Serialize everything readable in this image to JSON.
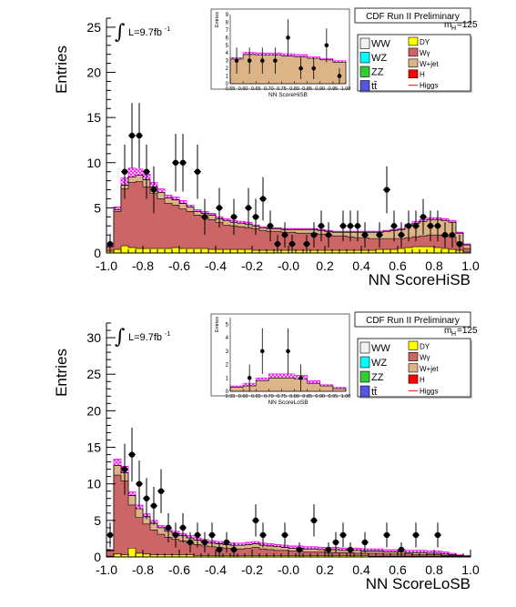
{
  "panels": [
    {
      "id": "hisb",
      "header": "CDF Run II Preliminary",
      "mass_label": "m",
      "mass_sub": "H",
      "mass_value": "=125",
      "lumi_text": "L=9.7fb",
      "lumi_sup": "-1",
      "inset": {
        "ylabel": "Entries",
        "xlabel": "NN ScoreHiSB",
        "xlim": [
          0.55,
          1.0
        ],
        "ylim": [
          0,
          9
        ],
        "yticks": [
          0,
          1,
          2,
          3,
          4,
          5,
          6,
          7,
          8,
          9
        ],
        "xticks": [
          "0.55",
          "0.60",
          "0.65",
          "0.70",
          "0.75",
          "0.80",
          "0.85",
          "0.90",
          "0.95",
          "1.00"
        ]
      },
      "legend": {
        "left": [
          {
            "label": "WW",
            "color": "#f2f2f2"
          },
          {
            "label": "WZ",
            "color": "#00ffff"
          },
          {
            "label": "ZZ",
            "color": "#33cc33"
          },
          {
            "label": "tt̄",
            "color": "#5555dd"
          }
        ],
        "right": [
          {
            "label": "DY",
            "color": "#ffff00"
          },
          {
            "label": "Wγ",
            "color": "#cc6666"
          },
          {
            "label": "W+jet",
            "color": "#ddb488"
          },
          {
            "label": "H",
            "color": "#ff0000"
          },
          {
            "label": "Higgs",
            "color": "#ff0000",
            "line": true
          }
        ]
      }
    },
    {
      "id": "losb",
      "header": "CDF Run II Preliminary",
      "mass_label": "m",
      "mass_sub": "H",
      "mass_value": "=125",
      "lumi_text": "L=9.7fb",
      "lumi_sup": "-1",
      "inset": {
        "ylabel": "Entries",
        "xlabel": "NN ScoreLoSB",
        "xlim": [
          0.55,
          1.0
        ],
        "ylim": [
          0,
          5.5
        ],
        "yticks": [
          0,
          1,
          2,
          3,
          4,
          5
        ],
        "xticks": [
          "0.55",
          "0.60",
          "0.65",
          "0.70",
          "0.75",
          "0.80",
          "0.85",
          "0.90",
          "0.95",
          "1.00"
        ]
      },
      "legend": {
        "left": [
          {
            "label": "WW",
            "color": "#f2f2f2"
          },
          {
            "label": "WZ",
            "color": "#00ffff"
          },
          {
            "label": "ZZ",
            "color": "#33cc33"
          },
          {
            "label": "tt̄",
            "color": "#5555dd"
          }
        ],
        "right": [
          {
            "label": "DY",
            "color": "#ffff00"
          },
          {
            "label": "Wγ",
            "color": "#cc6666"
          },
          {
            "label": "W+jet",
            "color": "#ddb488"
          },
          {
            "label": "H",
            "color": "#ff0000"
          },
          {
            "label": "Higgs",
            "color": "#ff0000",
            "line": true
          }
        ]
      }
    }
  ],
  "chart_data": [
    {
      "type": "histogram",
      "xlabel": "NN ScoreHiSB",
      "ylabel": "Entries",
      "xlim": [
        -1.0,
        1.0
      ],
      "ylim": [
        0,
        26
      ],
      "xticks": [
        "-1.0",
        "-0.8",
        "-0.6",
        "-0.4",
        "-0.2",
        "-0.0",
        "0.2",
        "0.4",
        "0.6",
        "0.8",
        "1.0"
      ],
      "yticks": [
        0,
        5,
        10,
        15,
        20,
        25
      ],
      "bin_edges_start": -1.0,
      "bin_width": 0.04,
      "stack_total": [
        0.7,
        4.8,
        7.5,
        8.4,
        8.6,
        8.1,
        7.3,
        6.7,
        6.1,
        5.9,
        5.5,
        5.1,
        4.6,
        4.4,
        4.2,
        3.8,
        3.6,
        3.4,
        3.3,
        3.2,
        3.0,
        2.8,
        2.7,
        2.7,
        2.6,
        2.6,
        2.6,
        2.6,
        2.6,
        2.5,
        2.4,
        2.3,
        2.3,
        2.3,
        2.3,
        2.3,
        2.3,
        2.3,
        2.4,
        2.5,
        2.6,
        3.1,
        3.3,
        3.5,
        3.7,
        3.7,
        3.6,
        3.4,
        2.2,
        0.9
      ],
      "wgamma_top": [
        0.7,
        4.6,
        7.1,
        7.8,
        7.9,
        7.3,
        6.6,
        6.0,
        5.5,
        5.3,
        4.9,
        4.6,
        4.2,
        4.0,
        3.7,
        3.4,
        3.1,
        3.0,
        2.9,
        2.8,
        2.7,
        2.5,
        2.4,
        2.4,
        2.3,
        2.3,
        2.2,
        2.2,
        2.2,
        2.1,
        2.0,
        1.9,
        1.9,
        1.8,
        1.7,
        1.7,
        1.6,
        1.6,
        1.6,
        1.6,
        1.6,
        1.7,
        1.8,
        1.9,
        2.0,
        2.0,
        1.9,
        1.8,
        1.2,
        0.5
      ],
      "dy_top": [
        0.2,
        0.4,
        0.8,
        0.6,
        0.5,
        0.5,
        0.5,
        0.5,
        0.5,
        0.6,
        0.5,
        0.5,
        0.5,
        0.5,
        0.4,
        0.4,
        0.4,
        0.4,
        0.4,
        0.4,
        0.3,
        0.3,
        0.3,
        0.3,
        0.3,
        0.3,
        0.3,
        0.3,
        0.3,
        0.3,
        0.3,
        0.3,
        0.3,
        0.3,
        0.3,
        0.3,
        0.3,
        0.4,
        0.4,
        0.4,
        0.5,
        0.6,
        0.7,
        0.7,
        0.7,
        0.6,
        0.5,
        0.4,
        0.3,
        0.1
      ],
      "higgs_top": [
        0.8,
        5.1,
        8.3,
        9.4,
        9.3,
        8.7,
        7.8,
        7.1,
        6.4,
        6.2,
        5.8,
        5.3,
        4.8,
        4.6,
        4.4,
        4.0,
        3.8,
        3.6,
        3.5,
        3.4,
        3.1,
        2.9,
        2.8,
        2.8,
        2.7,
        2.7,
        2.7,
        2.7,
        2.7,
        2.6,
        2.5,
        2.4,
        2.4,
        2.4,
        2.4,
        2.4,
        2.4,
        2.4,
        2.5,
        2.6,
        2.7,
        3.2,
        3.5,
        3.7,
        3.9,
        3.9,
        3.8,
        3.6,
        2.3,
        1.0
      ],
      "data": [
        {
          "x": -0.98,
          "y": 1,
          "err": 1.0
        },
        {
          "x": -0.9,
          "y": 9,
          "err": 3.0
        },
        {
          "x": -0.86,
          "y": 13,
          "err": 3.6
        },
        {
          "x": -0.82,
          "y": 13,
          "err": 3.6
        },
        {
          "x": -0.78,
          "y": 9,
          "err": 3.0
        },
        {
          "x": -0.74,
          "y": 7,
          "err": 2.6
        },
        {
          "x": -0.62,
          "y": 10,
          "err": 3.2
        },
        {
          "x": -0.58,
          "y": 10,
          "err": 3.2
        },
        {
          "x": -0.5,
          "y": 9,
          "err": 3.0
        },
        {
          "x": -0.46,
          "y": 4,
          "err": 2.0
        },
        {
          "x": -0.38,
          "y": 5,
          "err": 2.2
        },
        {
          "x": -0.3,
          "y": 4,
          "err": 2.0
        },
        {
          "x": -0.22,
          "y": 5,
          "err": 2.2
        },
        {
          "x": -0.18,
          "y": 4,
          "err": 2.0
        },
        {
          "x": -0.14,
          "y": 6,
          "err": 2.4
        },
        {
          "x": -0.1,
          "y": 3,
          "err": 1.7
        },
        {
          "x": -0.06,
          "y": 1,
          "err": 1.0
        },
        {
          "x": -0.02,
          "y": 2,
          "err": 1.4
        },
        {
          "x": 0.02,
          "y": 1,
          "err": 1.0
        },
        {
          "x": 0.1,
          "y": 1,
          "err": 1.0
        },
        {
          "x": 0.14,
          "y": 2,
          "err": 1.4
        },
        {
          "x": 0.18,
          "y": 3,
          "err": 1.7
        },
        {
          "x": 0.22,
          "y": 2,
          "err": 1.4
        },
        {
          "x": 0.3,
          "y": 3,
          "err": 1.7
        },
        {
          "x": 0.34,
          "y": 3,
          "err": 1.7
        },
        {
          "x": 0.38,
          "y": 3,
          "err": 1.7
        },
        {
          "x": 0.42,
          "y": 2,
          "err": 1.4
        },
        {
          "x": 0.5,
          "y": 2,
          "err": 1.4
        },
        {
          "x": 0.54,
          "y": 7,
          "err": 2.6
        },
        {
          "x": 0.58,
          "y": 3,
          "err": 1.7
        },
        {
          "x": 0.62,
          "y": 2,
          "err": 1.4
        },
        {
          "x": 0.66,
          "y": 3,
          "err": 1.7
        },
        {
          "x": 0.7,
          "y": 3,
          "err": 1.7
        },
        {
          "x": 0.74,
          "y": 4,
          "err": 2.0
        },
        {
          "x": 0.78,
          "y": 3,
          "err": 1.7
        },
        {
          "x": 0.82,
          "y": 3,
          "err": 1.7
        },
        {
          "x": 0.86,
          "y": 2,
          "err": 1.4
        },
        {
          "x": 0.9,
          "y": 2,
          "err": 1.4
        },
        {
          "x": 0.94,
          "y": 1,
          "err": 1.0
        }
      ],
      "inset_data": [
        {
          "x": 0.575,
          "y": 3,
          "err": 1.7
        },
        {
          "x": 0.625,
          "y": 3,
          "err": 1.7
        },
        {
          "x": 0.675,
          "y": 3,
          "err": 1.7
        },
        {
          "x": 0.725,
          "y": 3,
          "err": 1.7
        },
        {
          "x": 0.775,
          "y": 6,
          "err": 2.4
        },
        {
          "x": 0.825,
          "y": 2,
          "err": 1.4
        },
        {
          "x": 0.875,
          "y": 2,
          "err": 1.4
        },
        {
          "x": 0.925,
          "y": 5,
          "err": 2.2
        },
        {
          "x": 0.975,
          "y": 1,
          "err": 1.0
        }
      ],
      "inset_stack": [
        3.2,
        3.8,
        3.7,
        3.7,
        3.6,
        3.5,
        3.3,
        3.1,
        2.8
      ],
      "inset_higgs": [
        3.4,
        4.1,
        4.0,
        4.0,
        3.9,
        3.8,
        3.5,
        3.3,
        3.0
      ]
    },
    {
      "type": "histogram",
      "xlabel": "NN ScoreLoSB",
      "ylabel": "Entries",
      "xlim": [
        -1.0,
        1.0
      ],
      "ylim": [
        0,
        32
      ],
      "xticks": [
        "-1.0",
        "-0.8",
        "-0.6",
        "-0.4",
        "-0.2",
        "-0.0",
        "0.2",
        "0.4",
        "0.6",
        "0.8",
        "1.0"
      ],
      "yticks": [
        0,
        5,
        10,
        15,
        20,
        25,
        30
      ],
      "bin_edges_start": -1.0,
      "bin_width": 0.04,
      "stack_total": [
        0.9,
        12.5,
        11.5,
        8.4,
        6.6,
        5.5,
        4.6,
        4.0,
        3.5,
        3.2,
        2.9,
        2.6,
        2.3,
        2.1,
        1.9,
        1.8,
        1.7,
        1.6,
        1.6,
        1.7,
        1.8,
        1.6,
        1.5,
        1.4,
        1.3,
        1.2,
        1.2,
        1.1,
        1.1,
        1.0,
        1.0,
        1.0,
        0.9,
        0.9,
        0.9,
        0.8,
        0.8,
        0.8,
        0.7,
        0.7,
        0.7,
        0.6,
        0.6,
        0.6,
        0.5,
        0.5,
        0.4,
        0.3,
        0.2,
        0.1
      ],
      "wgamma_top": [
        0.8,
        11.2,
        10.4,
        7.1,
        5.4,
        4.5,
        3.7,
        3.1,
        2.7,
        2.4,
        2.2,
        1.9,
        1.7,
        1.5,
        1.4,
        1.3,
        1.2,
        1.1,
        1.1,
        1.2,
        1.3,
        1.1,
        1.0,
        0.9,
        0.9,
        0.8,
        0.8,
        0.7,
        0.7,
        0.7,
        0.6,
        0.6,
        0.6,
        0.6,
        0.5,
        0.5,
        0.5,
        0.5,
        0.4,
        0.4,
        0.4,
        0.4,
        0.3,
        0.3,
        0.3,
        0.3,
        0.2,
        0.2,
        0.1,
        0.1
      ],
      "dy_top": [
        0.1,
        0.4,
        0.3,
        1.2,
        0.5,
        0.4,
        0.3,
        0.3,
        0.3,
        0.3,
        0.3,
        0.3,
        0.2,
        0.2,
        0.2,
        0.2,
        0.2,
        0.2,
        0.2,
        0.2,
        0.2,
        0.2,
        0.2,
        0.2,
        0.2,
        0.2,
        0.2,
        0.2,
        0.2,
        0.2,
        0.2,
        0.2,
        0.2,
        0.2,
        0.2,
        0.2,
        0.1,
        0.1,
        0.1,
        0.1,
        0.1,
        0.1,
        0.1,
        0.1,
        0.1,
        0.1,
        0.1,
        0.1,
        0.1,
        0.1
      ],
      "higgs_top": [
        1.0,
        13.4,
        12.4,
        8.9,
        7.1,
        5.9,
        5.0,
        4.3,
        3.8,
        3.5,
        3.2,
        2.9,
        2.6,
        2.4,
        2.2,
        2.1,
        2.0,
        1.9,
        1.9,
        2.0,
        2.1,
        1.9,
        1.8,
        1.7,
        1.6,
        1.5,
        1.5,
        1.4,
        1.4,
        1.3,
        1.3,
        1.3,
        1.2,
        1.2,
        1.2,
        1.1,
        1.1,
        1.1,
        1.0,
        1.0,
        1.0,
        0.9,
        0.9,
        0.9,
        0.8,
        0.8,
        0.7,
        0.5,
        0.3,
        0.2
      ],
      "data": [
        {
          "x": -0.98,
          "y": 3,
          "err": 1.7
        },
        {
          "x": -0.9,
          "y": 12,
          "err": 3.5
        },
        {
          "x": -0.86,
          "y": 14,
          "err": 3.7
        },
        {
          "x": -0.82,
          "y": 10,
          "err": 3.2
        },
        {
          "x": -0.78,
          "y": 8,
          "err": 2.8
        },
        {
          "x": -0.74,
          "y": 7,
          "err": 2.6
        },
        {
          "x": -0.7,
          "y": 9,
          "err": 3.0
        },
        {
          "x": -0.66,
          "y": 4,
          "err": 2.0
        },
        {
          "x": -0.62,
          "y": 3,
          "err": 1.7
        },
        {
          "x": -0.58,
          "y": 4,
          "err": 2.0
        },
        {
          "x": -0.54,
          "y": 2,
          "err": 1.4
        },
        {
          "x": -0.5,
          "y": 3,
          "err": 1.7
        },
        {
          "x": -0.46,
          "y": 2,
          "err": 1.4
        },
        {
          "x": -0.42,
          "y": 3,
          "err": 1.7
        },
        {
          "x": -0.38,
          "y": 1,
          "err": 1.0
        },
        {
          "x": -0.34,
          "y": 2,
          "err": 1.4
        },
        {
          "x": -0.3,
          "y": 1,
          "err": 1.0
        },
        {
          "x": -0.18,
          "y": 5,
          "err": 2.2
        },
        {
          "x": -0.14,
          "y": 3,
          "err": 1.7
        },
        {
          "x": -0.02,
          "y": 3,
          "err": 1.7
        },
        {
          "x": 0.06,
          "y": 1,
          "err": 1.0
        },
        {
          "x": 0.14,
          "y": 5,
          "err": 2.2
        },
        {
          "x": 0.22,
          "y": 1,
          "err": 1.0
        },
        {
          "x": 0.26,
          "y": 2,
          "err": 1.4
        },
        {
          "x": 0.3,
          "y": 3,
          "err": 1.7
        },
        {
          "x": 0.34,
          "y": 1,
          "err": 1.0
        },
        {
          "x": 0.42,
          "y": 2,
          "err": 1.4
        },
        {
          "x": 0.54,
          "y": 3,
          "err": 1.7
        },
        {
          "x": 0.62,
          "y": 1,
          "err": 1.0
        },
        {
          "x": 0.7,
          "y": 3,
          "err": 1.7
        },
        {
          "x": 0.82,
          "y": 3,
          "err": 1.7
        }
      ],
      "inset_data": [
        {
          "x": 0.625,
          "y": 1,
          "err": 1.0
        },
        {
          "x": 0.675,
          "y": 3,
          "err": 1.7
        },
        {
          "x": 0.775,
          "y": 3,
          "err": 1.7
        },
        {
          "x": 0.825,
          "y": 1,
          "err": 1.0
        }
      ],
      "inset_stack": [
        0.3,
        0.4,
        0.8,
        1.0,
        1.0,
        0.9,
        0.6,
        0.4,
        0.2
      ],
      "inset_higgs": [
        0.4,
        0.6,
        1.0,
        1.3,
        1.3,
        1.2,
        0.8,
        0.5,
        0.3
      ]
    }
  ]
}
